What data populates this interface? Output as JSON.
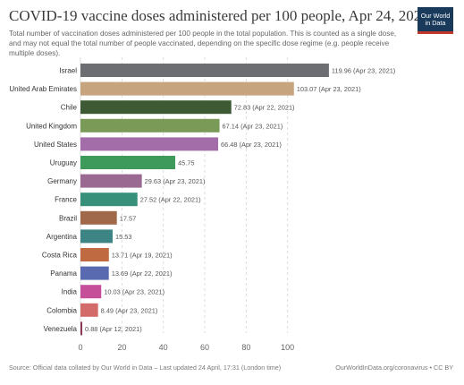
{
  "header": {
    "title": "COVID-19 vaccine doses administered per 100 people, Apr 24, 2021",
    "subtitle": "Total number of vaccination doses administered per 100 people in the total population. This is counted as a single dose, and may not equal the total number of people vaccinated, depending on the specific dose regime (e.g. people receive multiple doses).",
    "logo_line1": "Our World",
    "logo_line2": "in Data"
  },
  "footer": {
    "source": "Source: Official data collated by Our World in Data – Last updated 24 April, 17:31 (London time)",
    "credit": "OurWorldInData.org/coronavirus • CC BY"
  },
  "chart_data": {
    "type": "bar",
    "orientation": "horizontal",
    "categories": [
      "Israel",
      "United Arab Emirates",
      "Chile",
      "United Kingdom",
      "United States",
      "Uruguay",
      "Germany",
      "France",
      "Brazil",
      "Argentina",
      "Costa Rica",
      "Panama",
      "India",
      "Colombia",
      "Venezuela"
    ],
    "values": [
      119.96,
      103.07,
      72.83,
      67.14,
      66.48,
      45.75,
      29.63,
      27.52,
      17.57,
      15.53,
      13.71,
      13.69,
      10.03,
      8.49,
      0.88
    ],
    "value_labels": [
      "119.96 (Apr 23, 2021)",
      "103.07 (Apr 23, 2021)",
      "72.83 (Apr 22, 2021)",
      "67.14 (Apr 23, 2021)",
      "66.48 (Apr 23, 2021)",
      "45.75",
      "29.63 (Apr 23, 2021)",
      "27.52 (Apr 22, 2021)",
      "17.57",
      "15.53",
      "13.71 (Apr 19, 2021)",
      "13.69 (Apr 22, 2021)",
      "10.03 (Apr 23, 2021)",
      "8.49 (Apr 23, 2021)",
      "0.88 (Apr 12, 2021)"
    ],
    "colors": [
      "#6d6e71",
      "#c5a47e",
      "#3d5a34",
      "#7a9a57",
      "#a26da8",
      "#3e9a5a",
      "#9a6a92",
      "#37917a",
      "#a0694a",
      "#3d8585",
      "#c06a41",
      "#5a6ab0",
      "#c64f9a",
      "#d36b6b",
      "#8a3a52"
    ],
    "xlim": [
      0,
      120
    ],
    "xticks": [
      0,
      20,
      40,
      60,
      80,
      100
    ],
    "grid": true,
    "legend": "none",
    "title": "COVID-19 vaccine doses administered per 100 people, Apr 24, 2021"
  }
}
